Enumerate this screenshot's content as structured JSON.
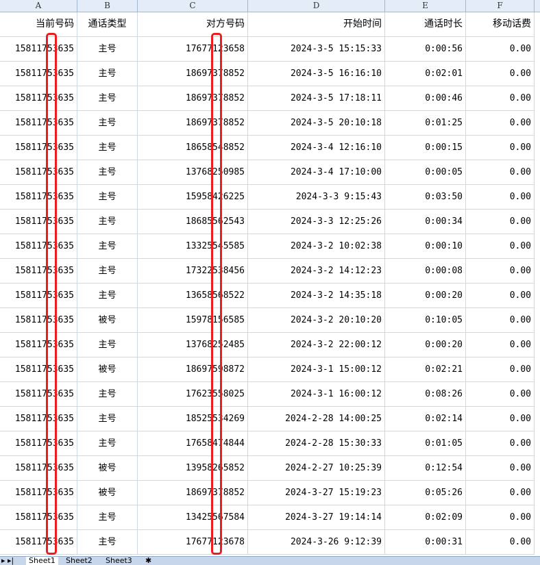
{
  "columns": [
    "A",
    "B",
    "C",
    "D",
    "E",
    "F"
  ],
  "headers": [
    "当前号码",
    "通话类型",
    "对方号码",
    "开始时间",
    "通话时长",
    "移动话费"
  ],
  "rows": [
    [
      "15811753635",
      "主号",
      "17677123658",
      "2024-3-5 15:15:33",
      "0:00:56",
      "0.00"
    ],
    [
      "15811753635",
      "主号",
      "18697378852",
      "2024-3-5 16:16:10",
      "0:02:01",
      "0.00"
    ],
    [
      "15811753635",
      "主号",
      "18697378852",
      "2024-3-5 17:18:11",
      "0:00:46",
      "0.00"
    ],
    [
      "15811753635",
      "主号",
      "18697378852",
      "2024-3-5 20:10:18",
      "0:01:25",
      "0.00"
    ],
    [
      "15811753635",
      "主号",
      "18658548852",
      "2024-3-4 12:16:10",
      "0:00:15",
      "0.00"
    ],
    [
      "15811753635",
      "主号",
      "13768250985",
      "2024-3-4 17:10:00",
      "0:00:05",
      "0.00"
    ],
    [
      "15811753635",
      "主号",
      "15958426225",
      "2024-3-3 9:15:43",
      "0:03:50",
      "0.00"
    ],
    [
      "15811753635",
      "主号",
      "18685562543",
      "2024-3-3 12:25:26",
      "0:00:34",
      "0.00"
    ],
    [
      "15811753635",
      "主号",
      "13325545585",
      "2024-3-2 10:02:38",
      "0:00:10",
      "0.00"
    ],
    [
      "15811753635",
      "主号",
      "17322538456",
      "2024-3-2 14:12:23",
      "0:00:08",
      "0.00"
    ],
    [
      "15811753635",
      "主号",
      "13658568522",
      "2024-3-2 14:35:18",
      "0:00:20",
      "0.00"
    ],
    [
      "15811753635",
      "被号",
      "15978156585",
      "2024-3-2 20:10:20",
      "0:10:05",
      "0.00"
    ],
    [
      "15811753635",
      "主号",
      "13768252485",
      "2024-3-2 22:00:12",
      "0:00:20",
      "0.00"
    ],
    [
      "15811753635",
      "被号",
      "18697598872",
      "2024-3-1 15:00:12",
      "0:02:21",
      "0.00"
    ],
    [
      "15811753635",
      "主号",
      "17623558025",
      "2024-3-1 16:00:12",
      "0:08:26",
      "0.00"
    ],
    [
      "15811753635",
      "主号",
      "18525534269",
      "2024-2-28 14:00:25",
      "0:02:14",
      "0.00"
    ],
    [
      "15811753635",
      "主号",
      "17658474844",
      "2024-2-28 15:30:33",
      "0:01:05",
      "0.00"
    ],
    [
      "15811753635",
      "被号",
      "13958265852",
      "2024-2-27 10:25:39",
      "0:12:54",
      "0.00"
    ],
    [
      "15811753635",
      "被号",
      "18697378852",
      "2024-3-27 15:19:23",
      "0:05:26",
      "0.00"
    ],
    [
      "15811753635",
      "主号",
      "13425567584",
      "2024-3-27 19:14:14",
      "0:02:09",
      "0.00"
    ],
    [
      "15811753635",
      "主号",
      "17677123678",
      "2024-3-26 9:12:39",
      "0:00:31",
      "0.00"
    ]
  ],
  "sheet_tabs": [
    "Sheet1",
    "Sheet2",
    "Sheet3"
  ],
  "redaction_color": "#ee1c1c"
}
